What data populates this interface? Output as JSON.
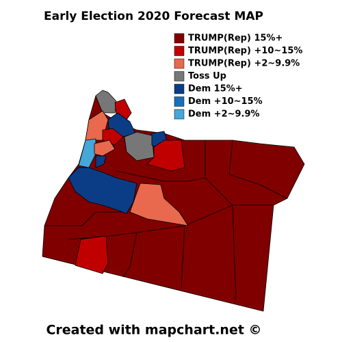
{
  "title": "Early Election 2020 Forecast MAP",
  "legend": [
    {
      "label": "TRUMP(Rep) 15%+",
      "color": "#800000"
    },
    {
      "label": "TRUMP(Rep) +10~15%",
      "color": "#c00000"
    },
    {
      "label": "TRUMP(Rep) +2~9.9%",
      "color": "#e8694e"
    },
    {
      "label": "Toss Up",
      "color": "#777777"
    },
    {
      "label": "Dem 15%+",
      "color": "#0b3d86"
    },
    {
      "label": "Dem +10~15%",
      "color": "#1a6fb8"
    },
    {
      "label": "Dem +2~9.9%",
      "color": "#45a8d8"
    }
  ],
  "footer": "Created with mapchart.net ©"
}
